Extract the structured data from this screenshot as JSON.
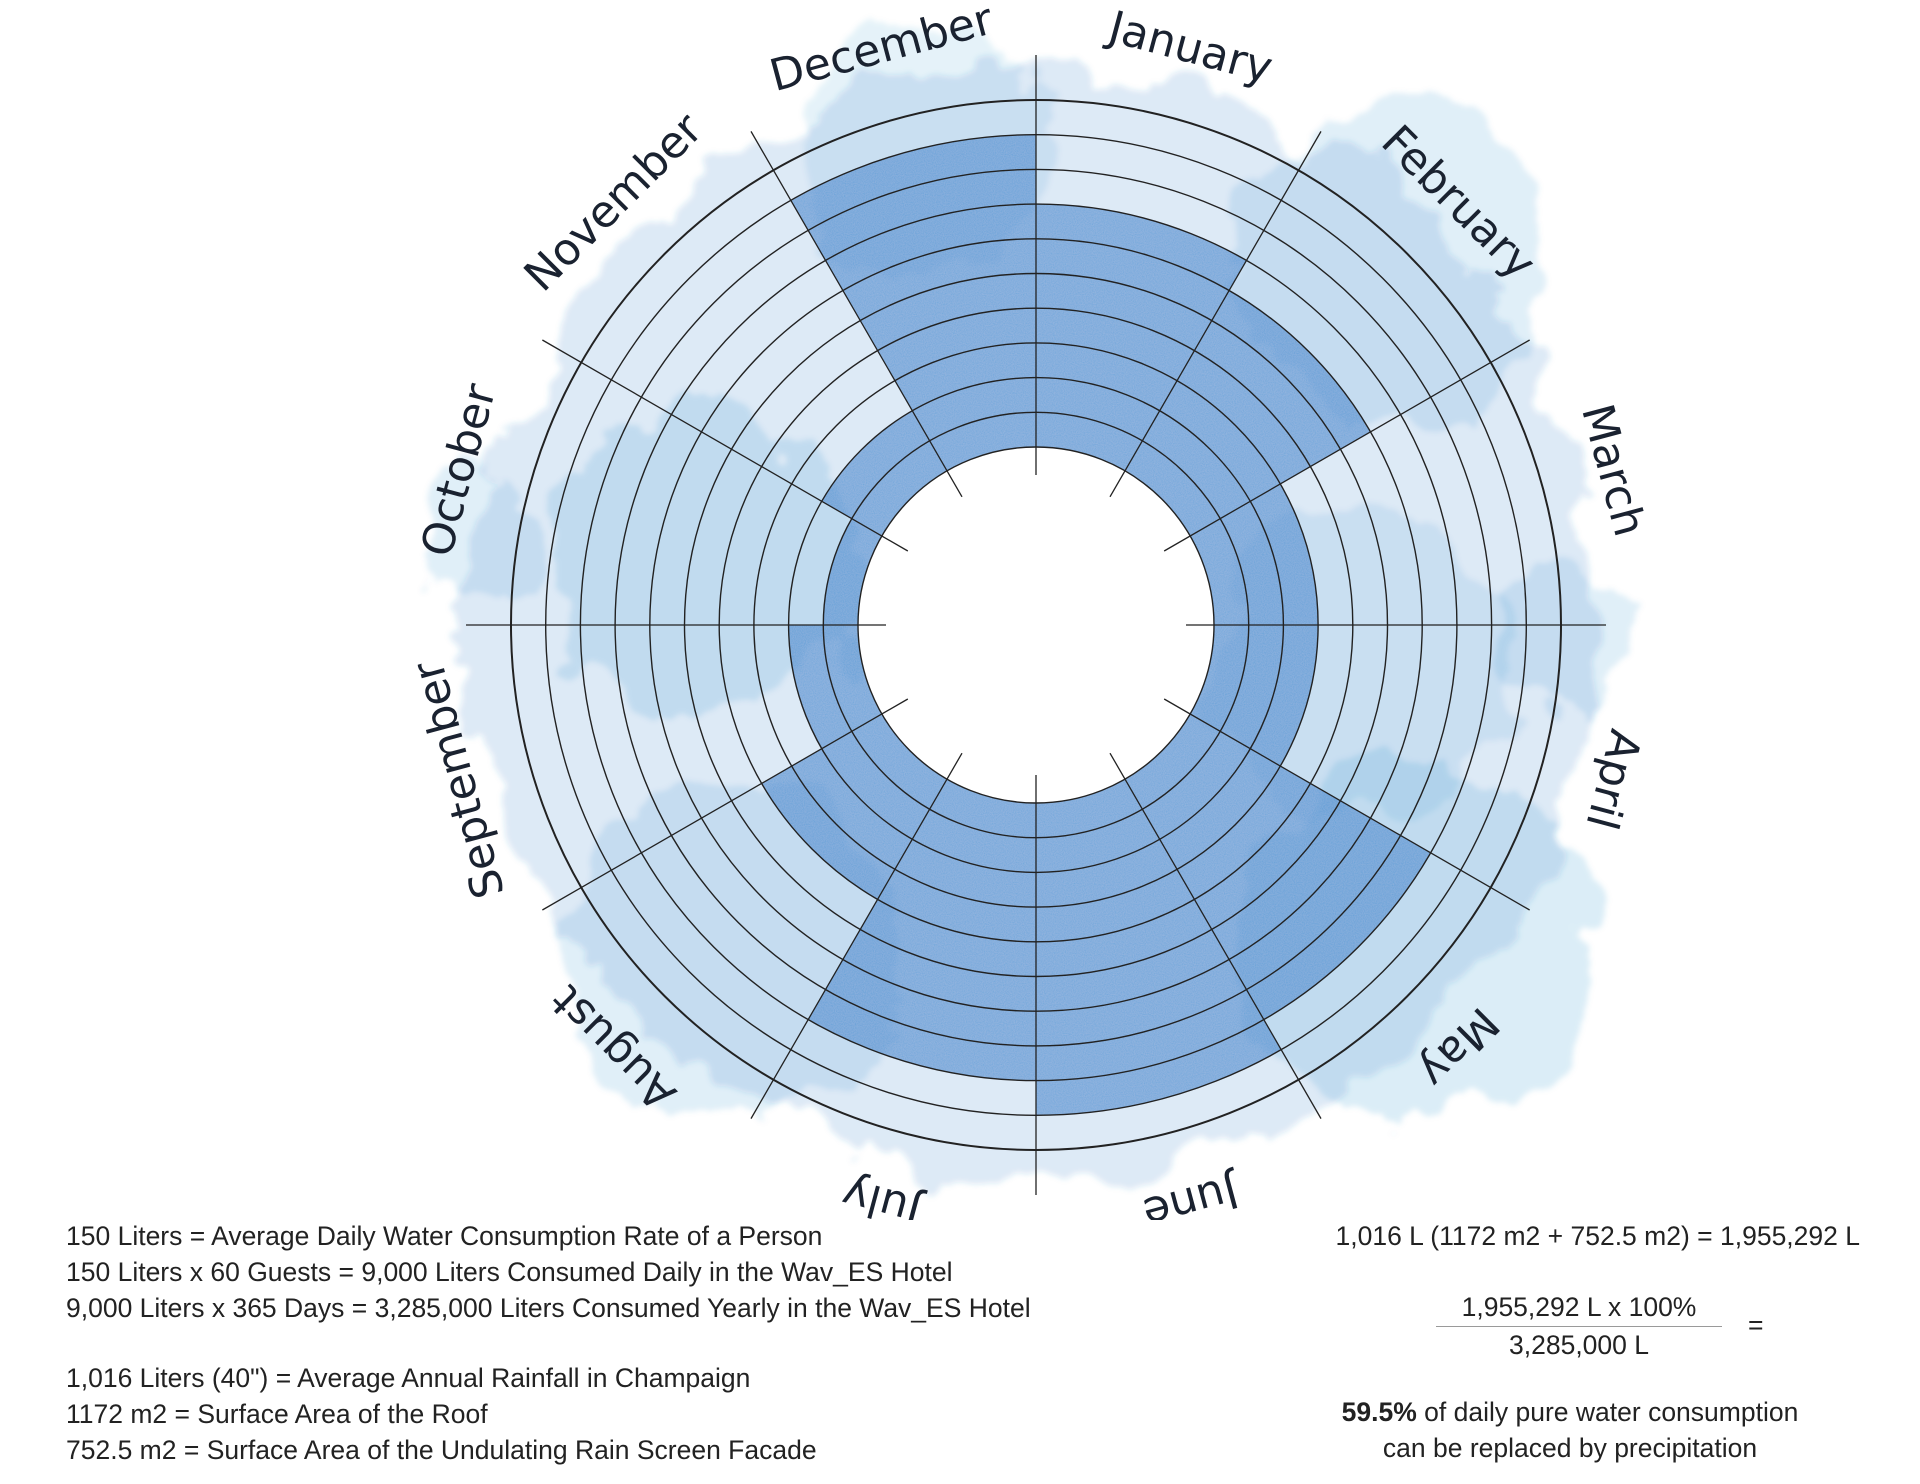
{
  "chart_data": {
    "type": "radial",
    "categories": [
      "January",
      "February",
      "March",
      "April",
      "May",
      "June",
      "July",
      "August",
      "September",
      "October",
      "November",
      "December"
    ],
    "rings": 10,
    "values": [
      7,
      6,
      3,
      3,
      8,
      9,
      8,
      4,
      2,
      1,
      2,
      9
    ],
    "title": "",
    "accent": "#1f7cc9"
  },
  "notes": {
    "line1": "150 Liters = Average Daily Water Consumption Rate of a Person",
    "line2": "150 Liters x 60 Guests = 9,000 Liters Consumed Daily in the Wav_ES Hotel",
    "line3": "9,000 Liters x 365 Days = 3,285,000 Liters Consumed Yearly in the Wav_ES Hotel",
    "line4": "1,016 Liters (40\") = Average Annual Rainfall in Champaign",
    "line5": "1172 m2 = Surface Area of the Roof",
    "line6": "752.5 m2 = Surface Area of the Undulating Rain Screen Facade"
  },
  "calc": {
    "equation": "1,016 L (1172 m2 + 752.5 m2) = 1,955,292 L",
    "numerator": "1,955,292 L x 100%",
    "denominator": "3,285,000 L",
    "equals": "=",
    "result_value": "59.5%",
    "result_text1": " of daily pure water consumption",
    "result_text2": "can be replaced by precipitation"
  }
}
